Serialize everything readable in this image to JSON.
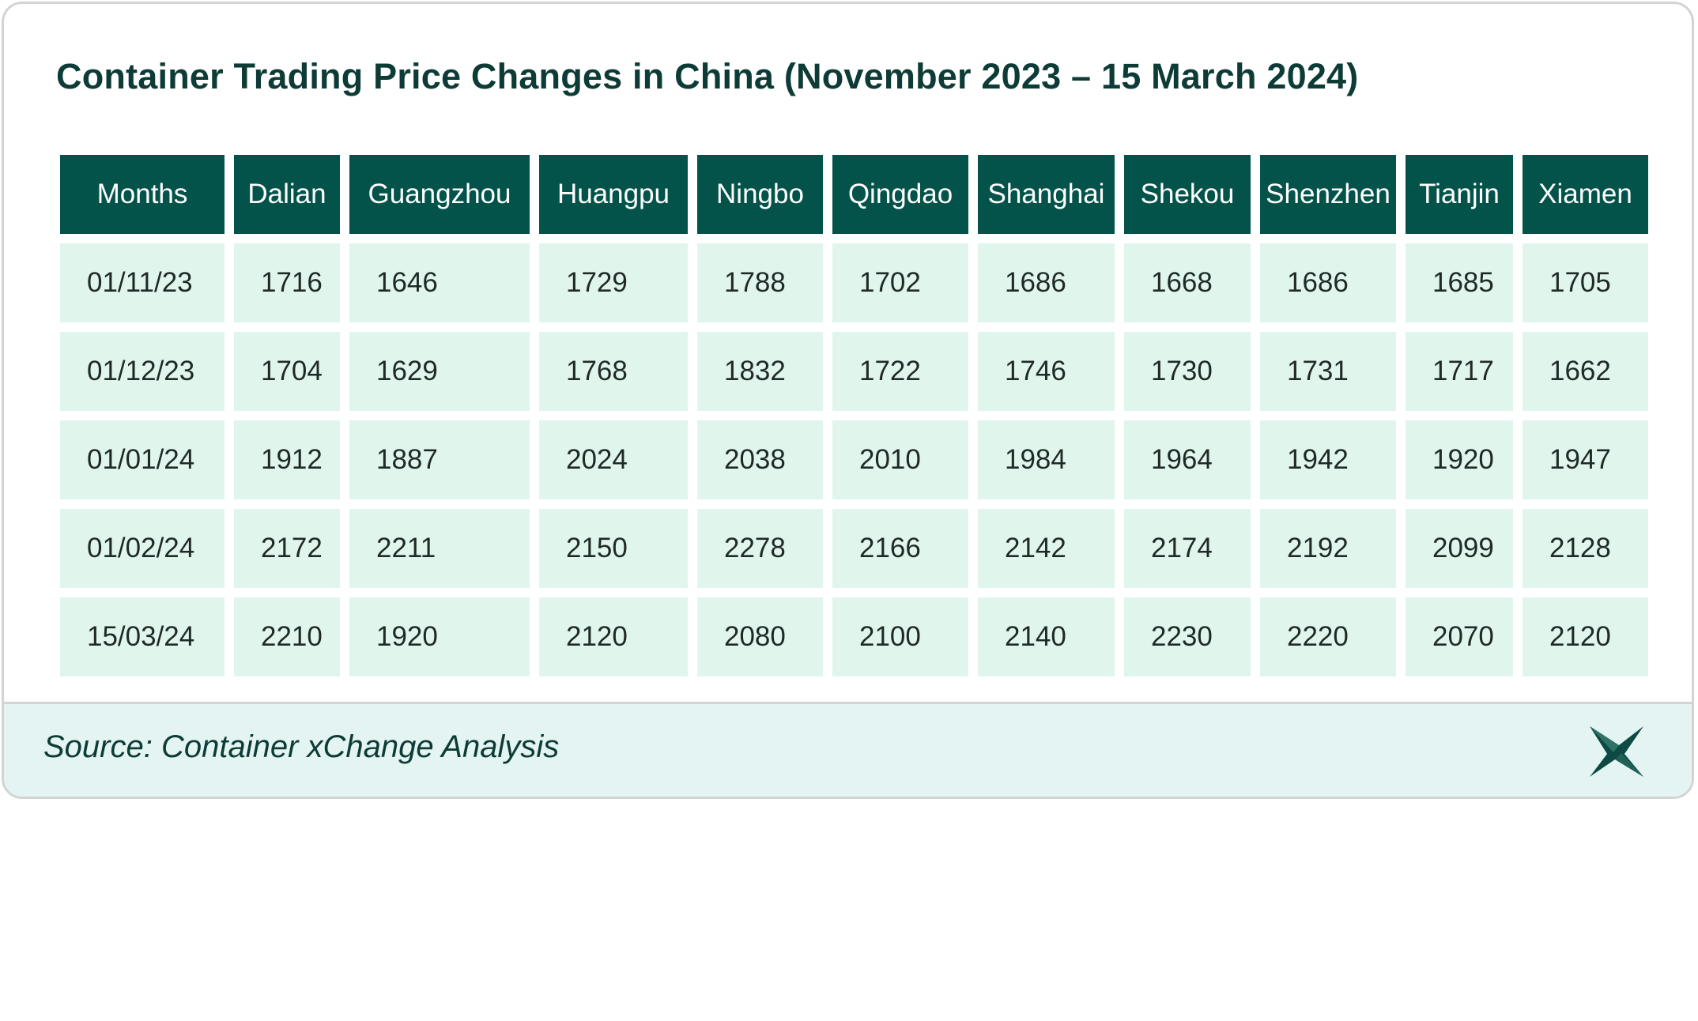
{
  "chart_data": {
    "type": "table",
    "title": "Container Trading Price Changes in China (November 2023 – 15 March 2024)",
    "columns": [
      "Months",
      "Dalian",
      "Guangzhou",
      "Huangpu",
      "Ningbo",
      "Qingdao",
      "Shanghai",
      "Shekou",
      "Shenzhen",
      "Tianjin",
      "Xiamen"
    ],
    "rows": [
      [
        "01/11/23",
        1716,
        1646,
        1729,
        1788,
        1702,
        1686,
        1668,
        1686,
        1685,
        1705
      ],
      [
        "01/12/23",
        1704,
        1629,
        1768,
        1832,
        1722,
        1746,
        1730,
        1731,
        1717,
        1662
      ],
      [
        "01/01/24",
        1912,
        1887,
        2024,
        2038,
        2010,
        1984,
        1964,
        1942,
        1920,
        1947
      ],
      [
        "01/02/24",
        2172,
        2211,
        2150,
        2278,
        2166,
        2142,
        2174,
        2192,
        2099,
        2128
      ],
      [
        "15/03/24",
        2210,
        1920,
        2120,
        2080,
        2100,
        2140,
        2230,
        2220,
        2070,
        2120
      ]
    ]
  },
  "footer": {
    "source": "Source: Container xChange Analysis",
    "logo_icon": "xchange-star-logo"
  },
  "colors": {
    "header_bg": "#04534a",
    "cell_bg": "#e0f6ec",
    "footer_bg": "#e3f4f2",
    "title": "#0d3b36"
  }
}
